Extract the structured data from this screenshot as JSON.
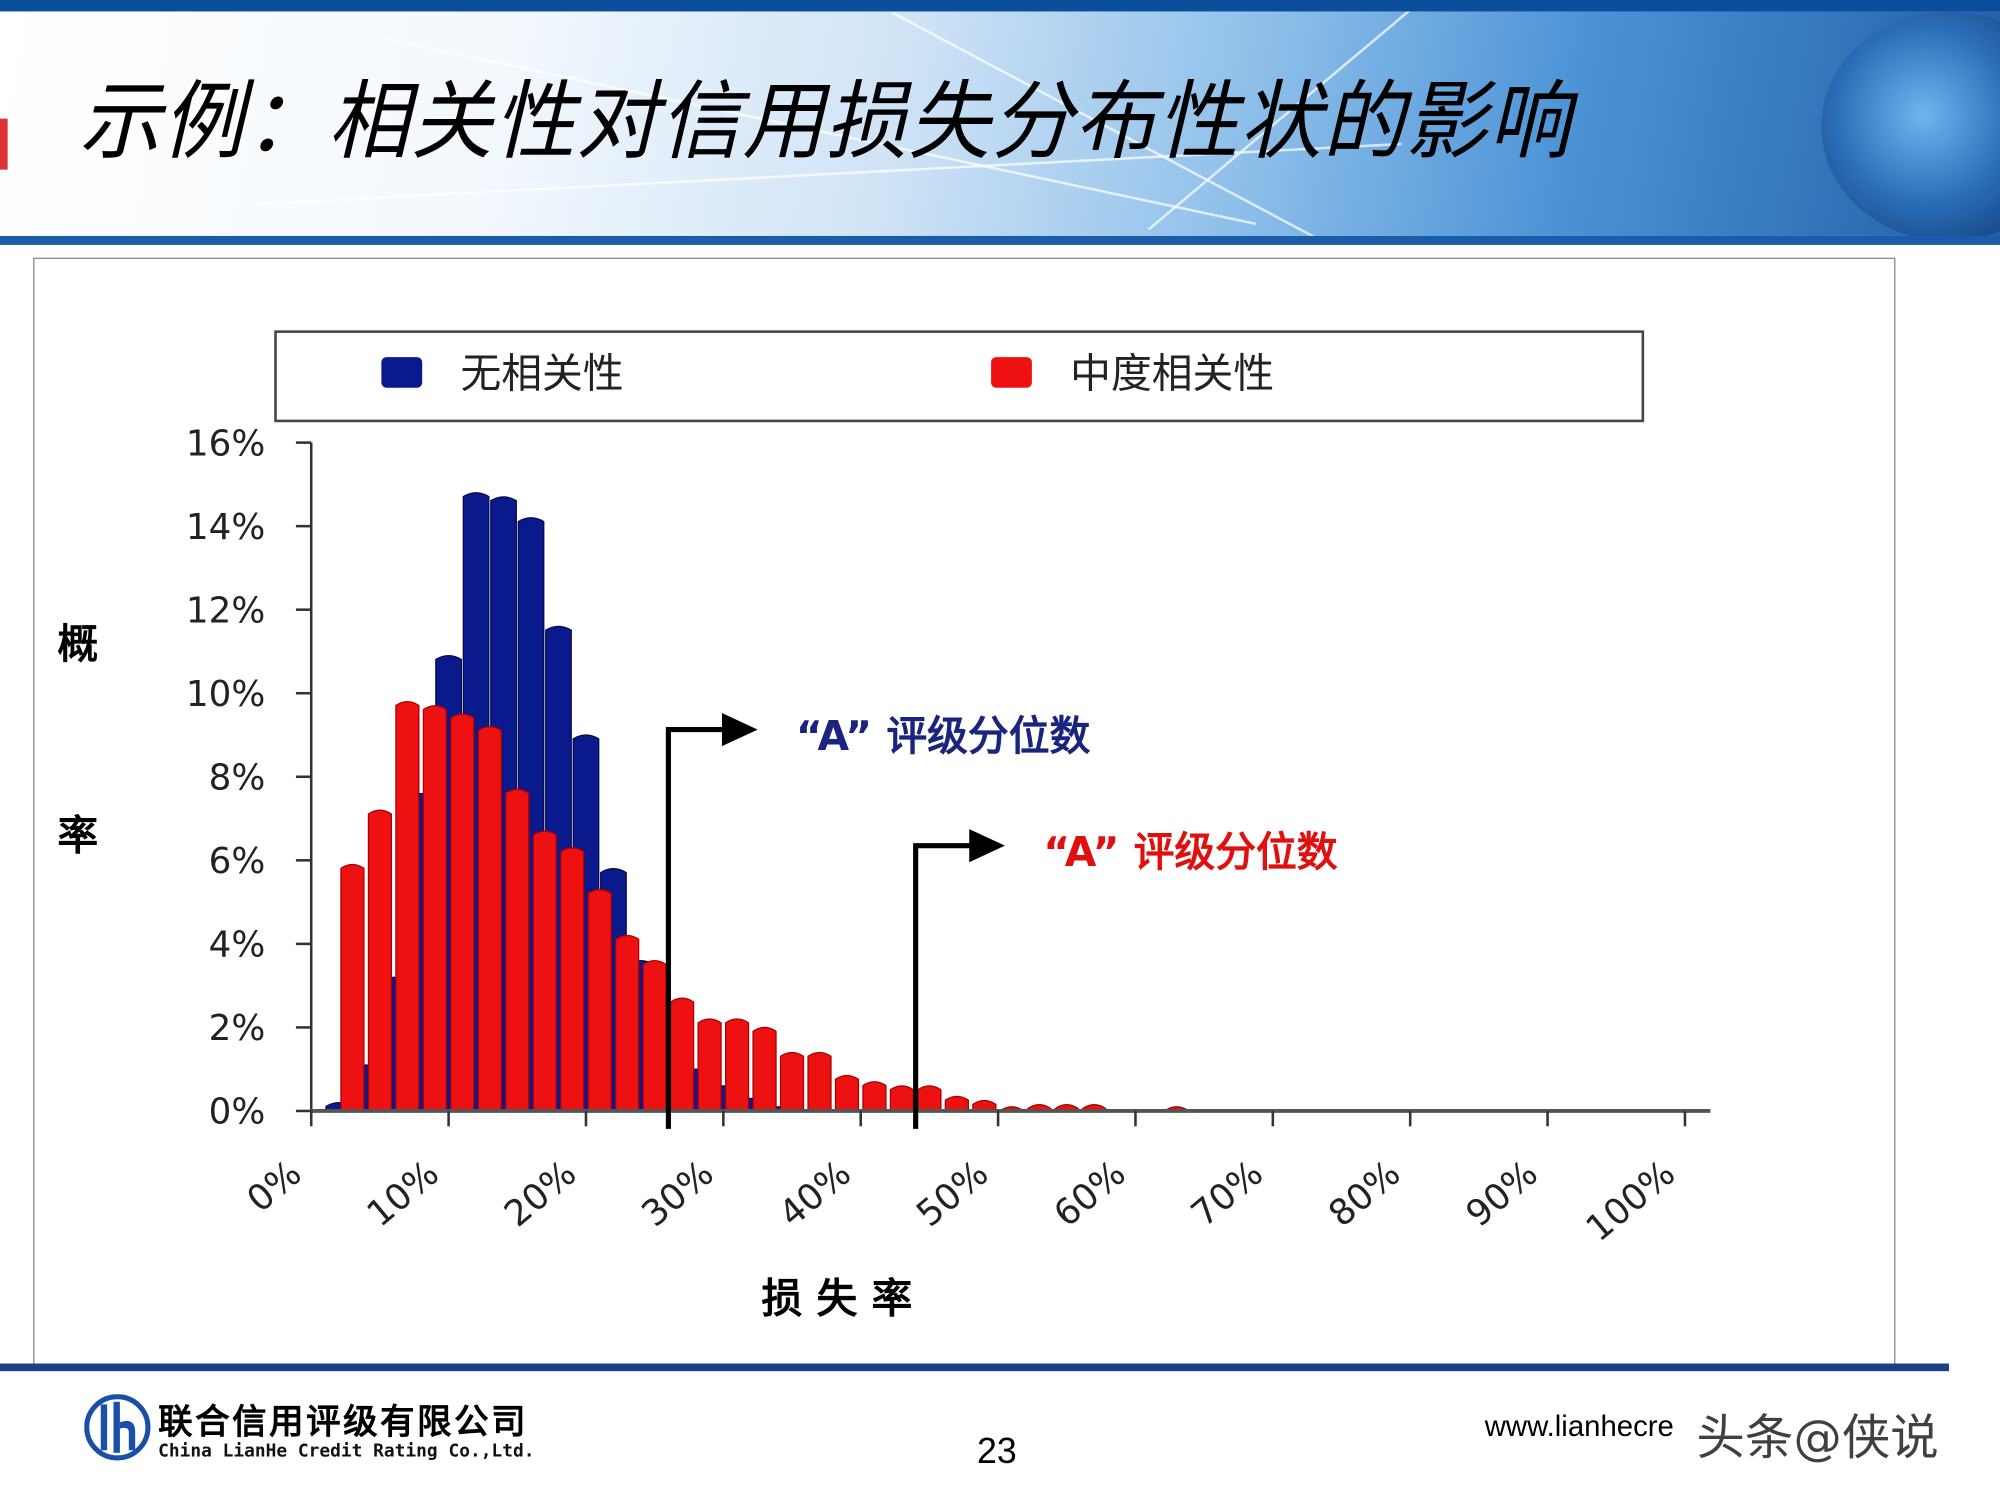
{
  "slide": {
    "title": "示例：相关性对信用损失分布性状的影响",
    "page_number": "23",
    "company_cn": "联合信用评级有限公司",
    "company_en": "China LianHe Credit Rating Co.,Ltd.",
    "url": "www.lianhecre",
    "watermark": "头条@侠说"
  },
  "chart_data": {
    "type": "bar",
    "xlabel": "损 失 率",
    "ylabel": "概率",
    "ylabel_chars": [
      "概",
      "率"
    ],
    "x_ticks": [
      "0%",
      "10%",
      "20%",
      "30%",
      "40%",
      "50%",
      "60%",
      "70%",
      "80%",
      "90%",
      "100%"
    ],
    "y_ticks": [
      "0%",
      "2%",
      "4%",
      "6%",
      "8%",
      "10%",
      "12%",
      "14%",
      "16%"
    ],
    "xlim": [
      0,
      100
    ],
    "ylim": [
      0,
      16
    ],
    "grid": false,
    "legend_placement": "top",
    "series": [
      {
        "name": "无相关性",
        "color": "#0a1a8c",
        "x": [
          2,
          4,
          6,
          8,
          10,
          12,
          14,
          16,
          18,
          20,
          22,
          24,
          26,
          28,
          30,
          32,
          34
        ],
        "values": [
          0.2,
          1.1,
          3.2,
          7.6,
          10.9,
          14.8,
          14.7,
          14.2,
          11.6,
          9.0,
          5.8,
          3.6,
          1.9,
          1.0,
          0.6,
          0.3,
          0.1
        ]
      },
      {
        "name": "中度相关性",
        "color": "#ee1111",
        "x": [
          3,
          5,
          7,
          9,
          11,
          13,
          15,
          17,
          19,
          21,
          23,
          25,
          27,
          29,
          31,
          33,
          35,
          37,
          39,
          41,
          43,
          45,
          47,
          49,
          51,
          53,
          55,
          57,
          63
        ],
        "values": [
          5.9,
          7.2,
          9.8,
          9.7,
          9.5,
          9.2,
          7.7,
          6.7,
          6.3,
          5.3,
          4.2,
          3.6,
          2.7,
          2.2,
          2.2,
          2.0,
          1.4,
          1.4,
          0.85,
          0.7,
          0.6,
          0.6,
          0.35,
          0.25,
          0.1,
          0.15,
          0.15,
          0.15,
          0.1
        ]
      }
    ],
    "annotations": [
      {
        "text": "“A” 评级分位数",
        "x": 26,
        "color": "#1a237e"
      },
      {
        "text": "“A” 评级分位数",
        "x": 44,
        "color": "#e01010"
      }
    ]
  }
}
